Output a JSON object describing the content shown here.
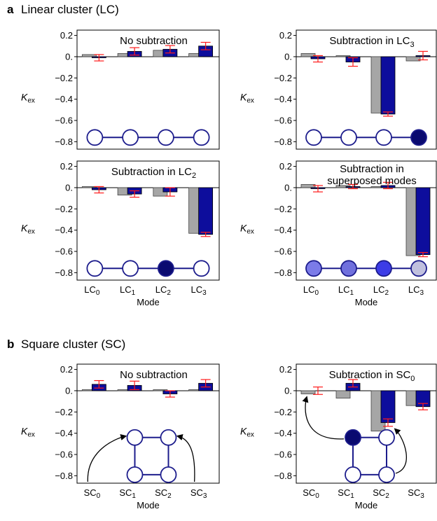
{
  "sections": [
    {
      "letter": "a",
      "title": "Linear cluster (LC)"
    },
    {
      "letter": "b",
      "title": "Square cluster (SC)"
    }
  ],
  "colors": {
    "reference_bar": "#a6a6a6",
    "measured_bar": "#0d0d9c",
    "error_bar": "#ff1a1a",
    "node_edge": "#1c1c8c",
    "filled_node": "#0a0a70"
  },
  "y_tick_labels": [
    "0.2",
    "0.",
    "−0.2",
    "−0.4",
    "−0.6",
    "−0.8"
  ],
  "y_label_main": "K",
  "chart_data": [
    {
      "type": "bar",
      "title": "No subtraction",
      "title_lines": [
        "No subtraction"
      ],
      "title_sub": "",
      "ylabel_sub": "ex",
      "xlabel": "",
      "ylim": [
        -0.87,
        0.25
      ],
      "categories": [
        "LC0",
        "LC1",
        "LC2",
        "LC3"
      ],
      "series": [
        {
          "values": [
            0.02,
            0.03,
            0.06,
            0.03
          ]
        },
        {
          "values": [
            -0.01,
            0.05,
            0.07,
            0.1
          ],
          "errors": [
            0.03,
            0.035,
            0.035,
            0.035
          ]
        }
      ],
      "cluster": {
        "kind": "linear",
        "nodes": [
          "white",
          "white",
          "white",
          "white"
        ]
      }
    },
    {
      "type": "bar",
      "title": "Subtraction in LC3",
      "title_lines": [
        "Subtraction in LC"
      ],
      "title_sub": "3",
      "ylabel_sub": "ex",
      "xlabel": "",
      "ylim": [
        -0.87,
        0.25
      ],
      "categories": [
        "LC0",
        "LC1",
        "LC2",
        "LC3"
      ],
      "series": [
        {
          "values": [
            0.03,
            0.01,
            -0.53,
            -0.04
          ]
        },
        {
          "values": [
            -0.02,
            -0.05,
            -0.54,
            0.01
          ],
          "errors": [
            0.03,
            0.04,
            0.02,
            0.04
          ]
        }
      ],
      "cluster": {
        "kind": "linear",
        "nodes": [
          "white",
          "white",
          "white",
          "#0a0a70"
        ]
      }
    },
    {
      "type": "bar",
      "title": "Subtraction in LC2",
      "title_lines": [
        "Subtraction in LC"
      ],
      "title_sub": "2",
      "ylabel_sub": "ex",
      "xlabel": "Mode",
      "ylim": [
        -0.87,
        0.25
      ],
      "categories": [
        "LC0",
        "LC1",
        "LC2",
        "LC3"
      ],
      "series": [
        {
          "values": [
            0.01,
            -0.07,
            -0.08,
            -0.43
          ]
        },
        {
          "values": [
            -0.02,
            -0.06,
            -0.04,
            -0.44
          ],
          "errors": [
            0.03,
            0.03,
            0.04,
            0.02
          ]
        }
      ],
      "cluster": {
        "kind": "linear",
        "nodes": [
          "white",
          "white",
          "#0a0a70",
          "white"
        ]
      }
    },
    {
      "type": "bar",
      "title": "Subtraction in superposed modes",
      "title_lines": [
        "Subtraction in",
        "superposed modes"
      ],
      "title_sub": "",
      "ylabel_sub": "ex",
      "xlabel": "Mode",
      "ylim": [
        -0.87,
        0.25
      ],
      "categories": [
        "LC0",
        "LC1",
        "LC2",
        "LC3"
      ],
      "series": [
        {
          "values": [
            0.03,
            0.02,
            0.01,
            -0.64
          ]
        },
        {
          "values": [
            -0.01,
            0.01,
            0.02,
            -0.63
          ],
          "errors": [
            0.03,
            0.02,
            0.03,
            0.02
          ]
        }
      ],
      "cluster": {
        "kind": "linear",
        "nodes": [
          "#7b7be8",
          "#7070dd",
          "#3c3ce6",
          "#c0c0de"
        ]
      }
    },
    {
      "type": "bar",
      "title": "No subtraction",
      "title_lines": [
        "No subtraction"
      ],
      "title_sub": "",
      "ylabel_sub": "ex",
      "xlabel": "Mode",
      "ylim": [
        -0.87,
        0.25
      ],
      "categories": [
        "SC0",
        "SC1",
        "SC2",
        "SC3"
      ],
      "series": [
        {
          "values": [
            0.01,
            0.01,
            0.01,
            0.01
          ]
        },
        {
          "values": [
            0.06,
            0.05,
            -0.03,
            0.07
          ],
          "errors": [
            0.035,
            0.04,
            0.03,
            0.035
          ]
        }
      ],
      "cluster": {
        "kind": "square",
        "nodes": [
          "white",
          "white",
          "white",
          "white"
        ]
      }
    },
    {
      "type": "bar",
      "title": "Subtraction in SC0",
      "title_lines": [
        "Subtraction in SC"
      ],
      "title_sub": "0",
      "ylabel_sub": "ex",
      "xlabel": "Mode",
      "ylim": [
        -0.87,
        0.25
      ],
      "categories": [
        "SC0",
        "SC1",
        "SC2",
        "SC3"
      ],
      "series": [
        {
          "values": [
            -0.03,
            -0.07,
            -0.38,
            -0.14
          ]
        },
        {
          "values": [
            0.0,
            0.07,
            -0.3,
            -0.15
          ],
          "errors": [
            0.035,
            0.035,
            0.035,
            0.03
          ]
        }
      ],
      "cluster": {
        "kind": "square",
        "nodes": [
          "#0a0a70",
          "white",
          "white",
          "white"
        ]
      }
    }
  ]
}
